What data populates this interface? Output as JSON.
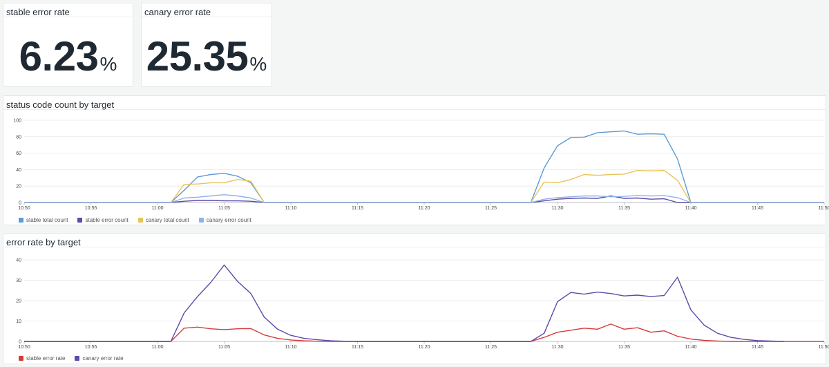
{
  "stats": [
    {
      "title": "stable error rate",
      "value": "6.23",
      "unit": "%"
    },
    {
      "title": "canary error rate",
      "value": "25.35",
      "unit": "%"
    }
  ],
  "colors": {
    "stable_total": "#5b9bd5",
    "stable_error": "#5e4aa8",
    "canary_total": "#e8c458",
    "canary_error": "#8fb2ea",
    "stable_error_rate": "#d63b3b",
    "canary_error_rate": "#5e4aa8"
  },
  "chart_data": [
    {
      "type": "line",
      "title": "status code count by target",
      "x_unit": "minutes",
      "x_ticks": [
        "10:50",
        "10:55",
        "11:00",
        "11:05",
        "11:10",
        "11:15",
        "11:20",
        "11:25",
        "11:30",
        "11:35",
        "11:40",
        "11:45",
        "11:50"
      ],
      "x_range": [
        "10:50",
        "11:50"
      ],
      "ylim": [
        0,
        100
      ],
      "y_ticks": [
        0,
        20,
        40,
        60,
        80,
        100
      ],
      "grid": true,
      "legend": "bottom-left",
      "series": [
        {
          "name": "stable total count",
          "color_key": "stable_total",
          "points": [
            [
              "10:50",
              0
            ],
            [
              "11:01",
              0
            ],
            [
              "11:02",
              15
            ],
            [
              "11:03",
              31
            ],
            [
              "11:04",
              34
            ],
            [
              "11:05",
              35.5
            ],
            [
              "11:06",
              32
            ],
            [
              "11:07",
              24
            ],
            [
              "11:08",
              0
            ],
            [
              "11:28",
              0
            ],
            [
              "11:29",
              42
            ],
            [
              "11:30",
              69
            ],
            [
              "11:31",
              79
            ],
            [
              "11:32",
              79.5
            ],
            [
              "11:33",
              85
            ],
            [
              "11:34",
              86
            ],
            [
              "11:35",
              87
            ],
            [
              "11:36",
              83
            ],
            [
              "11:37",
              83.5
            ],
            [
              "11:38",
              83
            ],
            [
              "11:39",
              53
            ],
            [
              "11:40",
              0
            ],
            [
              "11:50",
              0
            ]
          ]
        },
        {
          "name": "stable error count",
          "color_key": "stable_error",
          "points": [
            [
              "10:50",
              0
            ],
            [
              "11:01",
              0
            ],
            [
              "11:02",
              1.5
            ],
            [
              "11:03",
              2.5
            ],
            [
              "11:04",
              2.5
            ],
            [
              "11:05",
              2
            ],
            [
              "11:06",
              2
            ],
            [
              "11:07",
              1.5
            ],
            [
              "11:08",
              0
            ],
            [
              "11:28",
              0
            ],
            [
              "11:29",
              2
            ],
            [
              "11:30",
              4
            ],
            [
              "11:31",
              5
            ],
            [
              "11:32",
              5.5
            ],
            [
              "11:33",
              5
            ],
            [
              "11:34",
              8
            ],
            [
              "11:35",
              5
            ],
            [
              "11:36",
              5.5
            ],
            [
              "11:37",
              4
            ],
            [
              "11:38",
              4.5
            ],
            [
              "11:39",
              0
            ],
            [
              "11:50",
              0
            ]
          ]
        },
        {
          "name": "canary total count",
          "color_key": "canary_total",
          "points": [
            [
              "10:50",
              0
            ],
            [
              "11:01",
              0
            ],
            [
              "11:02",
              22
            ],
            [
              "11:03",
              22.5
            ],
            [
              "11:04",
              24
            ],
            [
              "11:05",
              24
            ],
            [
              "11:06",
              28
            ],
            [
              "11:07",
              26
            ],
            [
              "11:08",
              0
            ],
            [
              "11:28",
              0
            ],
            [
              "11:29",
              25
            ],
            [
              "11:30",
              24
            ],
            [
              "11:31",
              28
            ],
            [
              "11:32",
              34
            ],
            [
              "11:33",
              33
            ],
            [
              "11:34",
              34
            ],
            [
              "11:35",
              34.5
            ],
            [
              "11:36",
              39
            ],
            [
              "11:37",
              38.5
            ],
            [
              "11:38",
              39
            ],
            [
              "11:39",
              27
            ],
            [
              "11:40",
              0
            ],
            [
              "11:50",
              0
            ]
          ]
        },
        {
          "name": "canary error count",
          "color_key": "canary_error",
          "points": [
            [
              "10:50",
              0
            ],
            [
              "11:01",
              0
            ],
            [
              "11:02",
              5.5
            ],
            [
              "11:03",
              6.5
            ],
            [
              "11:04",
              8
            ],
            [
              "11:05",
              9.5
            ],
            [
              "11:06",
              8
            ],
            [
              "11:07",
              5.5
            ],
            [
              "11:08",
              0
            ],
            [
              "11:28",
              0
            ],
            [
              "11:29",
              4
            ],
            [
              "11:30",
              6
            ],
            [
              "11:31",
              7
            ],
            [
              "11:32",
              8
            ],
            [
              "11:33",
              8
            ],
            [
              "11:34",
              7
            ],
            [
              "11:35",
              7.5
            ],
            [
              "11:36",
              8.5
            ],
            [
              "11:37",
              8
            ],
            [
              "11:38",
              8.5
            ],
            [
              "11:39",
              6
            ],
            [
              "11:40",
              0
            ],
            [
              "11:50",
              0
            ]
          ]
        }
      ]
    },
    {
      "type": "line",
      "title": "error rate by target",
      "x_unit": "minutes",
      "x_ticks": [
        "10:50",
        "10:55",
        "11:00",
        "11:05",
        "11:10",
        "11:15",
        "11:20",
        "11:25",
        "11:30",
        "11:35",
        "11:40",
        "11:45",
        "11:50"
      ],
      "x_range": [
        "10:50",
        "11:50"
      ],
      "ylim": [
        0,
        40
      ],
      "y_ticks": [
        0,
        10,
        20,
        30,
        40
      ],
      "grid": true,
      "legend": "bottom-left",
      "series": [
        {
          "name": "stable error rate",
          "color_key": "stable_error_rate",
          "points": [
            [
              "10:50",
              0
            ],
            [
              "11:01",
              0
            ],
            [
              "11:02",
              6.5
            ],
            [
              "11:03",
              7
            ],
            [
              "11:04",
              6.2
            ],
            [
              "11:05",
              5.8
            ],
            [
              "11:06",
              6.2
            ],
            [
              "11:07",
              6.3
            ],
            [
              "11:08",
              3.2
            ],
            [
              "11:09",
              1.5
            ],
            [
              "11:10",
              0.7
            ],
            [
              "11:11",
              0.3
            ],
            [
              "11:12",
              0.1
            ],
            [
              "11:13",
              0
            ],
            [
              "11:28",
              0
            ],
            [
              "11:29",
              2
            ],
            [
              "11:30",
              4.5
            ],
            [
              "11:31",
              5.5
            ],
            [
              "11:32",
              6.5
            ],
            [
              "11:33",
              6
            ],
            [
              "11:34",
              8.5
            ],
            [
              "11:35",
              6
            ],
            [
              "11:36",
              6.7
            ],
            [
              "11:37",
              4.5
            ],
            [
              "11:38",
              5.2
            ],
            [
              "11:39",
              2.5
            ],
            [
              "11:40",
              1.2
            ],
            [
              "11:41",
              0.5
            ],
            [
              "11:42",
              0.2
            ],
            [
              "11:43",
              0
            ],
            [
              "11:50",
              0
            ]
          ]
        },
        {
          "name": "canary error rate",
          "color_key": "canary_error_rate",
          "points": [
            [
              "10:50",
              0
            ],
            [
              "11:01",
              0
            ],
            [
              "11:02",
              14
            ],
            [
              "11:03",
              22
            ],
            [
              "11:04",
              29
            ],
            [
              "11:05",
              37.5
            ],
            [
              "11:06",
              29.5
            ],
            [
              "11:07",
              23.5
            ],
            [
              "11:08",
              12
            ],
            [
              "11:09",
              6
            ],
            [
              "11:10",
              3
            ],
            [
              "11:11",
              1.5
            ],
            [
              "11:12",
              0.8
            ],
            [
              "11:13",
              0.3
            ],
            [
              "11:14",
              0.1
            ],
            [
              "11:15",
              0
            ],
            [
              "11:28",
              0
            ],
            [
              "11:29",
              4
            ],
            [
              "11:30",
              19.5
            ],
            [
              "11:31",
              24
            ],
            [
              "11:32",
              23.2
            ],
            [
              "11:33",
              24.2
            ],
            [
              "11:34",
              23.5
            ],
            [
              "11:35",
              22.3
            ],
            [
              "11:36",
              22.7
            ],
            [
              "11:37",
              22
            ],
            [
              "11:38",
              22.5
            ],
            [
              "11:39",
              31.5
            ],
            [
              "11:40",
              15.5
            ],
            [
              "11:41",
              8
            ],
            [
              "11:42",
              4
            ],
            [
              "11:43",
              2
            ],
            [
              "11:44",
              1
            ],
            [
              "11:45",
              0.4
            ],
            [
              "11:46",
              0.2
            ],
            [
              "11:47",
              0
            ]
          ]
        }
      ]
    }
  ]
}
